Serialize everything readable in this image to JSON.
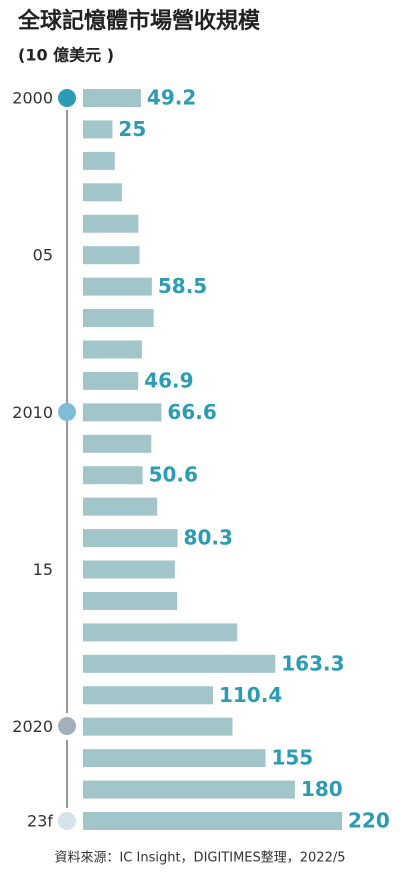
{
  "chart_data": {
    "type": "hbar",
    "title": "全球記憶體市場營收規模",
    "subtitle": "(10 億美元 )",
    "categories": [
      "2000",
      null,
      null,
      null,
      null,
      "05",
      null,
      null,
      null,
      null,
      "2010",
      null,
      null,
      null,
      null,
      "15",
      null,
      null,
      null,
      null,
      "2020",
      null,
      null,
      "23f"
    ],
    "values": [
      49.2,
      25,
      27,
      33,
      47,
      48,
      58.5,
      60,
      50,
      46.9,
      66.6,
      58,
      50.6,
      63,
      80.3,
      78,
      80,
      131,
      163.3,
      110.4,
      127,
      155,
      180,
      220
    ],
    "value_labels": [
      "49.2",
      "25",
      null,
      null,
      null,
      null,
      "58.5",
      null,
      null,
      "46.9",
      "66.6",
      null,
      "50.6",
      null,
      "80.3",
      null,
      null,
      null,
      "163.3",
      "110.4",
      null,
      "155",
      "180",
      "220"
    ],
    "color": "#a2c5c9",
    "label_color": "#2b9cb3",
    "xlim": [
      0,
      220
    ],
    "source": "資料來源：IC Insight，DIGITIMES整理，2022/5"
  }
}
